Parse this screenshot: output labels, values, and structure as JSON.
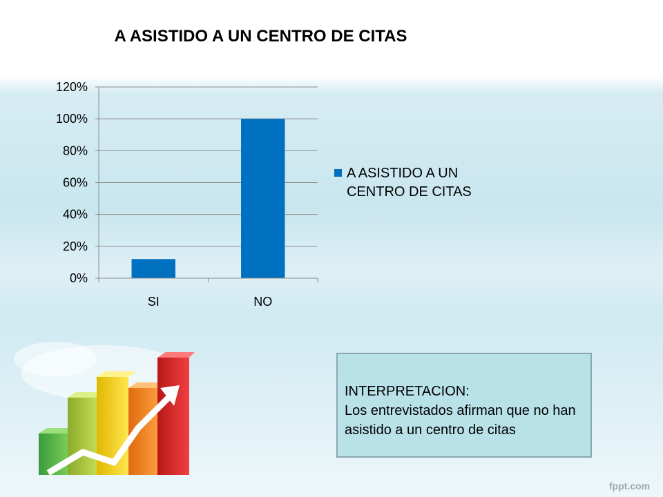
{
  "chart_data": {
    "type": "bar",
    "title": "A ASISTIDO A UN CENTRO DE CITAS",
    "categories": [
      "SI",
      "NO"
    ],
    "series": [
      {
        "name": "A ASISTIDO A UN CENTRO DE CITAS",
        "values": [
          12,
          100
        ]
      }
    ],
    "ylim": [
      0,
      120
    ],
    "yticks": [
      0,
      20,
      40,
      60,
      80,
      100,
      120
    ],
    "ytick_labels": [
      "0%",
      "20%",
      "40%",
      "60%",
      "80%",
      "100%",
      "120%"
    ],
    "grid": true,
    "legend_position": "right",
    "bar_color": "#0070c0"
  },
  "interpretation": {
    "title": "INTERPRETACION:",
    "body": "Los entrevistados afirman que no han asistido a un centro de citas"
  },
  "footer": {
    "brand": "fppt.com"
  },
  "decor": {
    "icon": "bar-chart-growth-icon"
  }
}
